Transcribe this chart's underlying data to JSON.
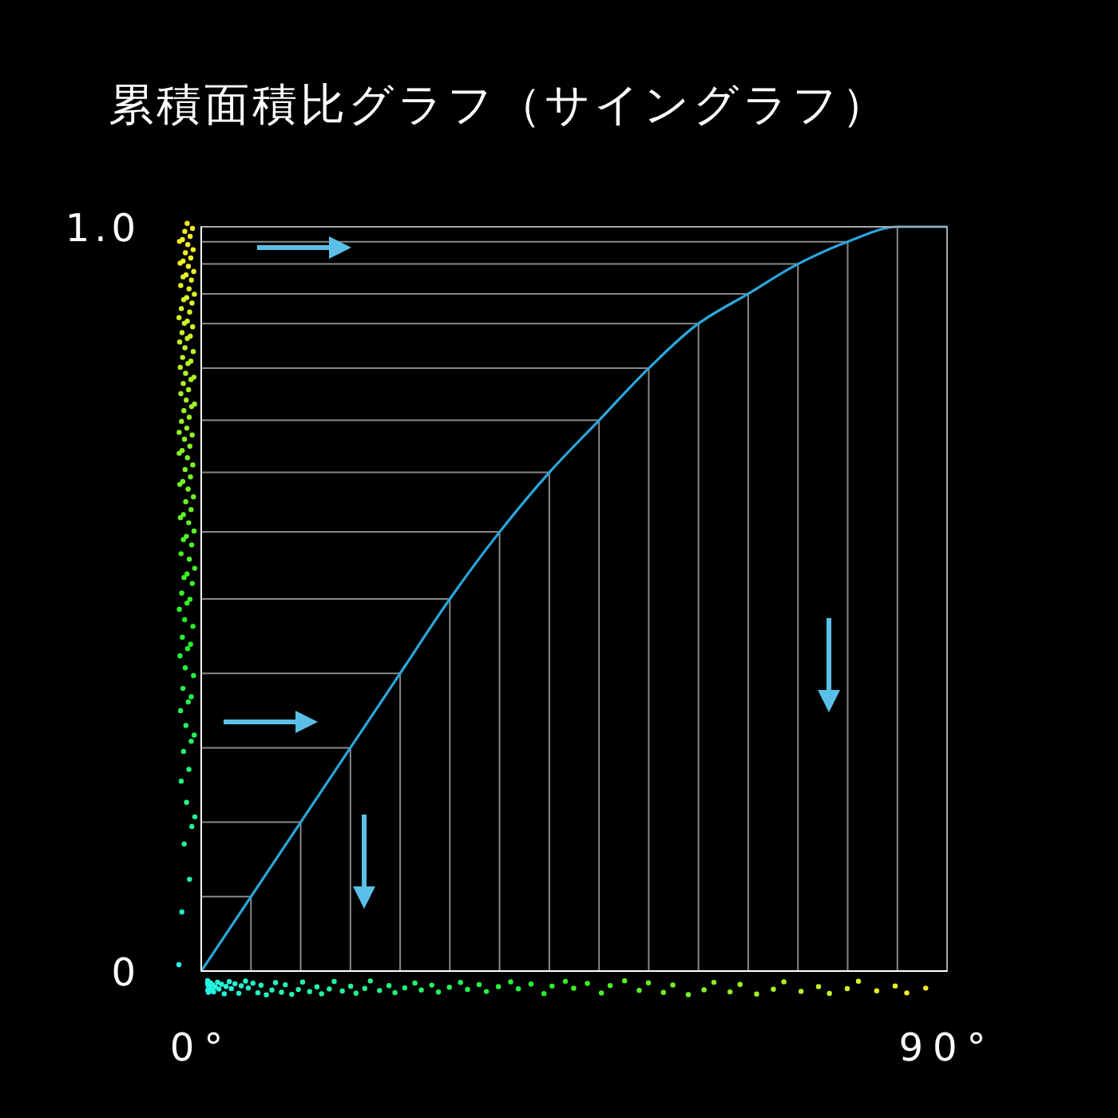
{
  "chart_data": {
    "type": "line",
    "title": "累積面積比グラフ（サイングラフ）",
    "x": [
      0,
      6,
      12,
      18,
      24,
      30,
      36,
      42,
      48,
      54,
      60,
      66,
      72,
      78,
      84,
      90
    ],
    "series": [
      {
        "color": "#2aa6dc",
        "values": [
          0,
          0.1,
          0.2,
          0.3,
          0.4,
          0.5,
          0.59,
          0.67,
          0.74,
          0.81,
          0.87,
          0.91,
          0.95,
          0.98,
          1.0,
          1.0
        ],
        "errors": [
          [
            0,
            0
          ],
          [
            0,
            0.1
          ],
          [
            0,
            0.2
          ],
          [
            0,
            0.3
          ],
          [
            0,
            0.4
          ],
          [
            0,
            0.5
          ],
          [
            0,
            0.59
          ],
          [
            0,
            0.67
          ],
          [
            0,
            0.74
          ],
          [
            0,
            0.81
          ],
          [
            0,
            0.87
          ],
          [
            0,
            0.91
          ],
          [
            0,
            0.95
          ],
          [
            0,
            0.98
          ],
          [
            0,
            1.0
          ],
          null
        ],
        "xerrors": [
          [
            0,
            0
          ],
          [
            0,
            6
          ],
          [
            0,
            12
          ],
          [
            0,
            18
          ],
          [
            0,
            24
          ],
          [
            0,
            30
          ],
          [
            0,
            36
          ],
          [
            0,
            42
          ],
          [
            0,
            48
          ],
          [
            0,
            54
          ],
          [
            0,
            60
          ],
          [
            0,
            66
          ],
          [
            0,
            72
          ],
          [
            0,
            78
          ],
          [
            0,
            84
          ],
          null
        ]
      }
    ],
    "xlim": [
      0,
      90
    ],
    "ylim": [
      0,
      1
    ],
    "xticks": [
      {
        "value": 0,
        "label": "0°"
      },
      {
        "value": 90,
        "label": "90°"
      }
    ],
    "yticks": [
      0,
      {
        "value": 1,
        "label": "1.0"
      }
    ]
  }
}
